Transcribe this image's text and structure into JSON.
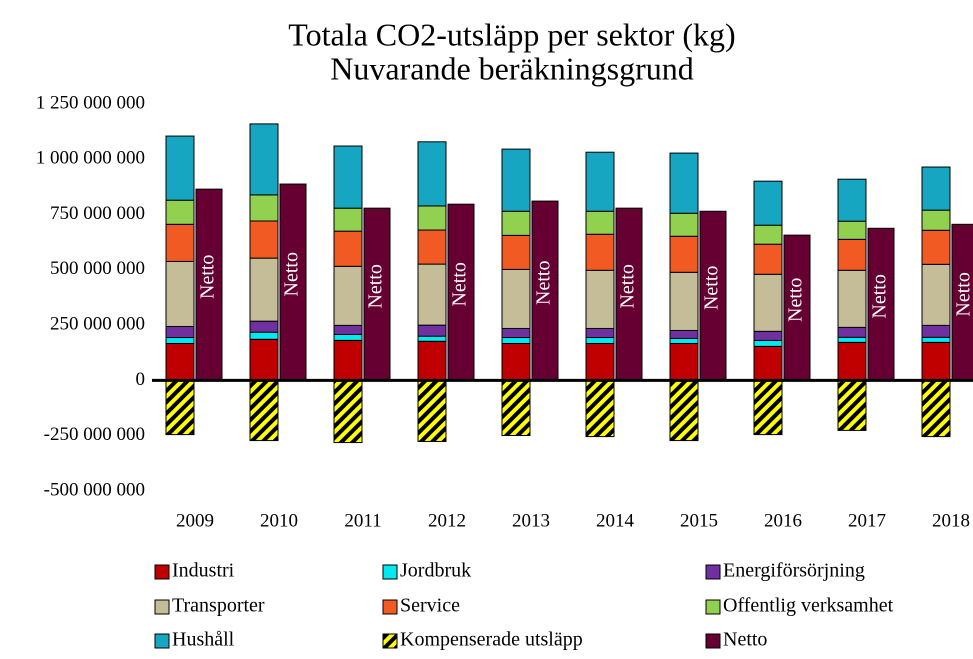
{
  "chart_data": {
    "type": "bar",
    "title": "Totala CO2-utsläpp per sektor (kg)",
    "subtitle": "Nuvarande beräkningsgrund",
    "categories": [
      "2009",
      "2010",
      "2011",
      "2012",
      "2013",
      "2014",
      "2015",
      "2016",
      "2017",
      "2018"
    ],
    "series": [
      {
        "name": "Industri",
        "color": "#c00000",
        "values": [
          167000000,
          186000000,
          181000000,
          177000000,
          167000000,
          167000000,
          167000000,
          154000000,
          172000000,
          172000000
        ]
      },
      {
        "name": "Jordbruk",
        "color": "#00e8f0",
        "values": [
          27000000,
          32000000,
          27000000,
          23000000,
          27000000,
          27000000,
          23000000,
          27000000,
          23000000,
          23000000
        ]
      },
      {
        "name": "Energiförsörjning",
        "color": "#7030a0",
        "values": [
          50000000,
          50000000,
          41000000,
          50000000,
          41000000,
          41000000,
          36000000,
          41000000,
          45000000,
          54000000
        ]
      },
      {
        "name": "Transporter",
        "color": "#c4bd97",
        "values": [
          294000000,
          285000000,
          267000000,
          276000000,
          267000000,
          263000000,
          263000000,
          258000000,
          258000000,
          276000000
        ]
      },
      {
        "name": "Service",
        "color": "#f25a24",
        "values": [
          168000000,
          168000000,
          159000000,
          154000000,
          154000000,
          163000000,
          163000000,
          136000000,
          140000000,
          154000000
        ]
      },
      {
        "name": "Offentlig verksamhet",
        "color": "#92d050",
        "values": [
          109000000,
          118000000,
          104000000,
          109000000,
          109000000,
          104000000,
          104000000,
          86000000,
          82000000,
          91000000
        ]
      },
      {
        "name": "Hushåll",
        "color": "#17a6c1",
        "values": [
          290000000,
          321000000,
          281000000,
          290000000,
          281000000,
          267000000,
          272000000,
          199000000,
          190000000,
          195000000
        ]
      },
      {
        "name": "Kompenserade utsläpp",
        "color": "#ffff00",
        "pattern": "hatch",
        "values": [
          -245000000,
          -272000000,
          -281000000,
          -276000000,
          -249000000,
          -254000000,
          -272000000,
          -245000000,
          -226000000,
          -254000000
        ]
      },
      {
        "name": "Netto",
        "color": "#660033",
        "values": [
          865000000,
          888000000,
          779000000,
          797000000,
          811000000,
          779000000,
          765000000,
          657000000,
          688000000,
          706000000
        ],
        "value_labels": [
          "Netto",
          "Netto",
          "Netto",
          "Netto",
          "Netto",
          "Netto",
          "Netto",
          "Netto",
          "Netto",
          "Netto"
        ]
      }
    ],
    "ylim": [
      -500000000,
      1250000000
    ],
    "yticks": [
      {
        "value": -500000000,
        "label": "-500 000 000"
      },
      {
        "value": -250000000,
        "label": "-250 000 000"
      },
      0,
      {
        "value": 250000000,
        "label": "250 000 000"
      },
      {
        "value": 500000000,
        "label": "500 000 000"
      },
      {
        "value": 750000000,
        "label": "750 000 000"
      },
      {
        "value": 1000000000,
        "label": "1 000 000 000"
      },
      {
        "value": 1250000000,
        "label": "1 250 000 000"
      }
    ],
    "grid": false,
    "legend": "bottom"
  }
}
